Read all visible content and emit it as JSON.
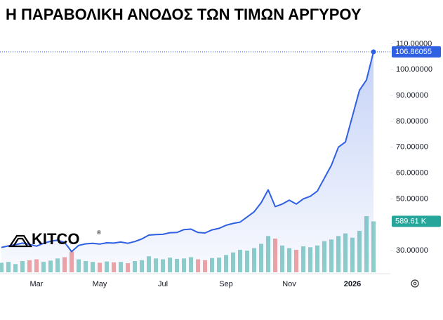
{
  "chart_data": {
    "type": "line",
    "title": "Η ΠΑΡΑΒΟΛΙΚΗ ΑΝΟΔΟΣ ΤΩΝ ΤΙΜΩΝ ΑΡΓΥΡΟΥ",
    "logo": "KITCO",
    "logo_mark": "®",
    "categories": [
      null,
      null,
      null,
      null,
      null,
      "Mar",
      null,
      null,
      null,
      null,
      null,
      null,
      null,
      null,
      "May",
      null,
      null,
      null,
      null,
      null,
      null,
      null,
      null,
      "Jul",
      null,
      null,
      null,
      null,
      null,
      null,
      null,
      null,
      "Sep",
      null,
      null,
      null,
      null,
      null,
      null,
      null,
      null,
      "Nov",
      null,
      null,
      null,
      null,
      null,
      null,
      null,
      null,
      "2026",
      null,
      null,
      null
    ],
    "series": [
      {
        "color": "#2f5fe3",
        "values": [
          31.2,
          31.8,
          32.3,
          32.9,
          32.4,
          31.7,
          32.8,
          33.6,
          34.0,
          33.2,
          29.6,
          32.0,
          32.6,
          32.8,
          32.5,
          33.0,
          32.9,
          33.3,
          32.8,
          33.5,
          34.5,
          36.0,
          36.2,
          36.3,
          36.9,
          37.0,
          38.1,
          38.3,
          37.0,
          36.8,
          38.0,
          38.6,
          39.8,
          40.5,
          41.0,
          43.0,
          45.0,
          48.5,
          53.5,
          47.0,
          48.0,
          49.5,
          48.0,
          50.0,
          51.0,
          53.0,
          58.0,
          63.0,
          70.0,
          72.0,
          82.0,
          92.0,
          96.0,
          106.86055
        ]
      }
    ],
    "ylim": [
      21.6,
      112
    ],
    "yticks": [
      {
        "value": 30,
        "label": "30.00000"
      },
      {
        "value": 50,
        "label": "50.00000"
      },
      {
        "value": 60,
        "label": "60.00000"
      },
      {
        "value": 70,
        "label": "70.00000"
      },
      {
        "value": 80,
        "label": "80.00000"
      },
      {
        "value": 90,
        "label": "90.00000"
      },
      {
        "value": 100,
        "label": "100.00000"
      },
      {
        "value": 110,
        "label": "110.00000"
      }
    ],
    "grid": false,
    "volume": {
      "ylim": [
        0,
        1300
      ],
      "up_color": "#8fd0c9",
      "down_color": "#f2a5a3",
      "label_color": "#26a69a",
      "values": [
        110,
        120,
        95,
        130,
        140,
        150,
        120,
        135,
        160,
        175,
        240,
        150,
        130,
        120,
        110,
        125,
        115,
        120,
        105,
        130,
        140,
        185,
        160,
        150,
        170,
        155,
        160,
        175,
        150,
        140,
        165,
        170,
        200,
        230,
        260,
        250,
        280,
        330,
        420,
        390,
        310,
        280,
        260,
        300,
        290,
        310,
        360,
        380,
        420,
        450,
        400,
        480,
        650,
        589.61
      ],
      "value_labels": [
        null,
        null,
        null,
        null,
        null,
        null,
        null,
        null,
        null,
        null,
        null,
        null,
        null,
        null,
        null,
        null,
        null,
        null,
        null,
        null,
        null,
        null,
        null,
        null,
        null,
        null,
        null,
        null,
        null,
        null,
        null,
        null,
        null,
        null,
        null,
        null,
        null,
        null,
        null,
        null,
        null,
        null,
        null,
        null,
        null,
        null,
        null,
        null,
        null,
        null,
        null,
        null,
        null,
        "589.61 K"
      ]
    }
  }
}
